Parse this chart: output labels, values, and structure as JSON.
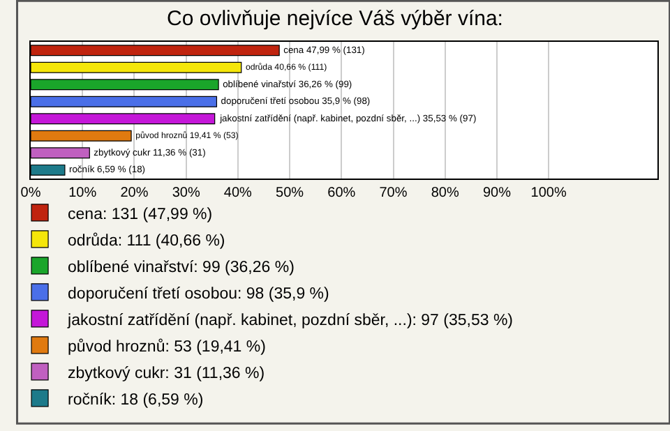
{
  "chart_data": {
    "type": "bar",
    "orientation": "horizontal",
    "title": "Co ovlivňuje nejvíce Váš výběr vína:",
    "categories": [
      null,
      null,
      null,
      null,
      null,
      null,
      null,
      null
    ],
    "series": [
      {
        "name": "cena: 131 (47,99 %)",
        "color": "#c0240f",
        "values": [
          47.99,
          null,
          null,
          null,
          null,
          null,
          null,
          null
        ],
        "value_labels": [
          "cena 47,99 % (131)",
          null,
          null,
          null,
          null,
          null,
          null,
          null
        ]
      },
      {
        "name": "odrůda: 111 (40,66 %)",
        "color": "#f5e60a",
        "values": [
          null,
          40.66,
          null,
          null,
          null,
          null,
          null,
          null
        ],
        "value_labels": [
          null,
          "odrůda 40,66 % (111)",
          null,
          null,
          null,
          null,
          null,
          null
        ]
      },
      {
        "name": "oblíbené vinařství: 99 (36,26 %)",
        "color": "#1aa52a",
        "values": [
          null,
          null,
          36.26,
          null,
          null,
          null,
          null,
          null
        ],
        "value_labels": [
          null,
          null,
          "oblíbené vinařství 36,26 % (99)",
          null,
          null,
          null,
          null,
          null
        ]
      },
      {
        "name": "doporučení třetí osobou: 98 (35,9 %)",
        "color": "#4a6fe8",
        "values": [
          null,
          null,
          null,
          35.9,
          null,
          null,
          null,
          null
        ],
        "value_labels": [
          null,
          null,
          null,
          "doporučení třetí osobou 35,9 % (98)",
          null,
          null,
          null,
          null
        ]
      },
      {
        "name": "jakostní zatřídění (např. kabinet, pozdní sběr, ...): 97 (35,53 %)",
        "color": "#c417d8",
        "values": [
          null,
          null,
          null,
          null,
          35.53,
          null,
          null,
          null
        ],
        "value_labels": [
          null,
          null,
          null,
          null,
          "jakostní zatřídění (např. kabinet, pozdní sběr, ...) 35,53 % (97)",
          null,
          null,
          null
        ]
      },
      {
        "name": "původ hroznů: 53 (19,41 %)",
        "color": "#e07a10",
        "values": [
          null,
          null,
          null,
          null,
          null,
          19.41,
          null,
          null
        ],
        "value_labels": [
          null,
          null,
          null,
          null,
          null,
          "původ hroznů 19,41 % (53)",
          null,
          null
        ]
      },
      {
        "name": "zbytkový cukr: 31 (11,36 %)",
        "color": "#c060c0",
        "values": [
          null,
          null,
          null,
          null,
          null,
          null,
          11.36,
          null
        ],
        "value_labels": [
          null,
          null,
          null,
          null,
          null,
          null,
          "zbytkový cukr 11,36 % (31)",
          null
        ]
      },
      {
        "name": "ročník: 18 (6,59 %)",
        "color": "#1d7a8a",
        "values": [
          null,
          null,
          null,
          null,
          null,
          null,
          null,
          6.59
        ],
        "value_labels": [
          null,
          null,
          null,
          null,
          null,
          null,
          null,
          "ročník 6,59 % (18)"
        ]
      }
    ],
    "xlim": [
      0,
      121
    ],
    "xticks": [
      {
        "value": 0,
        "label": "0%"
      },
      {
        "value": 10,
        "label": "10%"
      },
      {
        "value": 20,
        "label": "20%"
      },
      {
        "value": 30,
        "label": "30%"
      },
      {
        "value": 40,
        "label": "40%"
      },
      {
        "value": 50,
        "label": "50%"
      },
      {
        "value": 60,
        "label": "60%"
      },
      {
        "value": 70,
        "label": "70%"
      },
      {
        "value": 80,
        "label": "80%"
      },
      {
        "value": 90,
        "label": "90%"
      },
      {
        "value": 100,
        "label": "100%"
      }
    ],
    "tick_labels": "x",
    "grid": "x",
    "legend": "bottom"
  }
}
